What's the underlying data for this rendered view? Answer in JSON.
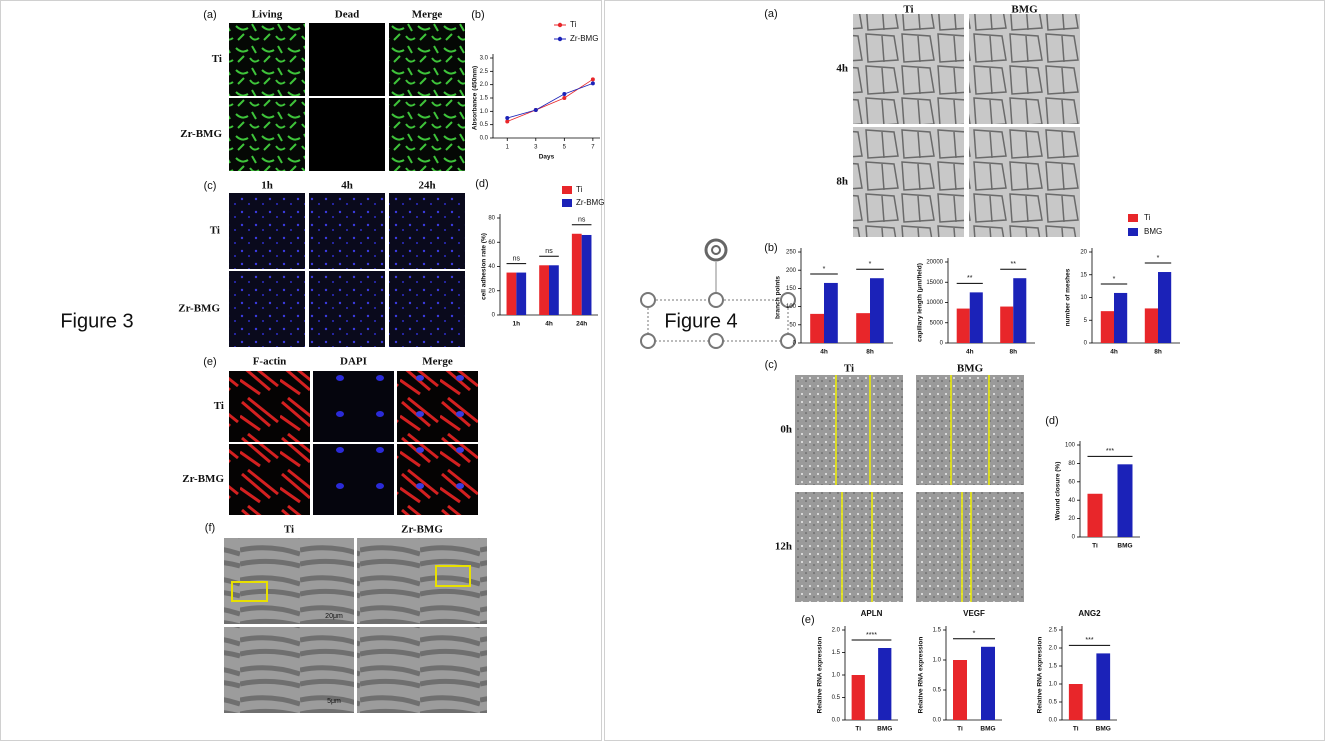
{
  "slide_left": {
    "caption": "Figure 3"
  },
  "slide_right": {
    "caption": "Figure 4"
  },
  "figure3": {
    "panel_a": {
      "label": "(a)",
      "columns": [
        "Living",
        "Dead",
        "Merge"
      ],
      "rows": [
        "Ti",
        "Zr-BMG"
      ]
    },
    "panel_c": {
      "label": "(c)",
      "columns": [
        "1h",
        "4h",
        "24h"
      ],
      "rows": [
        "Ti",
        "Zr-BMG"
      ]
    },
    "panel_e": {
      "label": "(e)",
      "columns": [
        "F-actin",
        "DAPI",
        "Merge"
      ],
      "rows": [
        "Ti",
        "Zr-BMG"
      ]
    },
    "panel_f": {
      "label": "(f)",
      "columns": [
        "Ti",
        "Zr-BMG"
      ],
      "scale_bars": [
        "20μm",
        "5μm"
      ]
    }
  },
  "figure4": {
    "panel_a": {
      "label": "(a)",
      "columns": [
        "Ti",
        "BMG"
      ],
      "rows": [
        "4h",
        "8h"
      ]
    },
    "panel_b": {
      "label": "(b)"
    },
    "panel_c": {
      "label": "(c)",
      "columns": [
        "Ti",
        "BMG"
      ],
      "rows": [
        "0h",
        "12h"
      ]
    },
    "panel_e": {
      "label": "(e)"
    }
  },
  "chart_data": [
    {
      "type": "line",
      "label": "(b)",
      "x": [
        1,
        3,
        5,
        7
      ],
      "xlim": [
        0,
        7.5
      ],
      "xticks": [
        1,
        3,
        5,
        7
      ],
      "ylim": [
        0,
        3
      ],
      "yticks": [
        {
          "value": 0,
          "label": "0.0"
        },
        {
          "value": 0.5,
          "label": "0.5"
        },
        {
          "value": 1,
          "label": "1.0"
        },
        {
          "value": 1.5,
          "label": "1.5"
        },
        {
          "value": 2,
          "label": "2.0"
        },
        {
          "value": 2.5,
          "label": "2.5"
        },
        {
          "value": 3,
          "label": "3.0"
        }
      ],
      "x_label": "Days",
      "y_label": "Absorbance (450nm)",
      "series": [
        {
          "name": "Ti",
          "color": "#e8262a",
          "values": [
            0.62,
            1.05,
            1.5,
            2.2
          ]
        },
        {
          "name": "Zr-BMG",
          "color": "#1b22b8",
          "values": [
            0.75,
            1.05,
            1.65,
            2.05
          ]
        }
      ]
    },
    {
      "type": "bar",
      "label": "(d)",
      "categories": [
        "1h",
        "4h",
        "24h"
      ],
      "ylim": [
        0,
        80
      ],
      "yticks": [
        0,
        20,
        40,
        60,
        80
      ],
      "y_label": "cell adhesion rate (%)",
      "series": [
        {
          "name": "Ti",
          "color": "#e8262a",
          "values": [
            35,
            41,
            67
          ]
        },
        {
          "name": "Zr-BMG",
          "color": "#1b22b8",
          "values": [
            35,
            41,
            66
          ]
        }
      ],
      "sig": [
        "ns",
        "ns",
        "ns"
      ]
    },
    {
      "type": "bar",
      "categories": [
        "4h",
        "8h"
      ],
      "ylim": [
        0,
        250
      ],
      "yticks": [
        0,
        50,
        100,
        150,
        200,
        250
      ],
      "y_label": "branch points",
      "series": [
        {
          "name": "Ti",
          "color": "#e8262a",
          "values": [
            80,
            82
          ]
        },
        {
          "name": "BMG",
          "color": "#1b22b8",
          "values": [
            165,
            178
          ]
        }
      ],
      "sig": [
        "*",
        "*"
      ]
    },
    {
      "type": "bar",
      "categories": [
        "4h",
        "8h"
      ],
      "ylim": [
        0,
        20000
      ],
      "yticks": [
        0,
        5000,
        10000,
        15000,
        20000
      ],
      "y_label": "capillary length (μm/field)",
      "series": [
        {
          "name": "Ti",
          "color": "#e8262a",
          "values": [
            8500,
            9000
          ]
        },
        {
          "name": "BMG",
          "color": "#1b22b8",
          "values": [
            12500,
            16000
          ]
        }
      ],
      "sig": [
        "**",
        "**"
      ]
    },
    {
      "type": "bar",
      "categories": [
        "4h",
        "8h"
      ],
      "ylim": [
        0,
        20
      ],
      "yticks": [
        0,
        5,
        10,
        15,
        20
      ],
      "y_label": "number of meshes",
      "series": [
        {
          "name": "Ti",
          "color": "#e8262a",
          "values": [
            7,
            7.6
          ]
        },
        {
          "name": "BMG",
          "color": "#1b22b8",
          "values": [
            11,
            15.6
          ]
        }
      ],
      "sig": [
        "*",
        "*"
      ]
    },
    {
      "type": "bar",
      "label": "(d)",
      "categories": [
        "Ti",
        "BMG"
      ],
      "values": [
        47,
        79
      ],
      "colors": [
        "#e8262a",
        "#1b22b8"
      ],
      "ylim": [
        0,
        100
      ],
      "yticks": [
        0,
        20,
        40,
        60,
        80,
        100
      ],
      "y_label": "Wound closure (%)",
      "sig": "***"
    },
    {
      "type": "bar",
      "title": "APLN",
      "categories": [
        "Ti",
        "BMG"
      ],
      "values": [
        1,
        1.6
      ],
      "colors": [
        "#e8262a",
        "#1b22b8"
      ],
      "ylim": [
        0,
        2
      ],
      "yticks": [
        {
          "value": 0,
          "label": "0.0"
        },
        {
          "value": 0.5,
          "label": "0.5"
        },
        {
          "value": 1,
          "label": "1.0"
        },
        {
          "value": 1.5,
          "label": "1.5"
        },
        {
          "value": 2,
          "label": "2.0"
        }
      ],
      "y_label": "Relative RNA expression",
      "sig": "****"
    },
    {
      "type": "bar",
      "title": "VEGF",
      "categories": [
        "Ti",
        "BMG"
      ],
      "values": [
        1,
        1.22
      ],
      "colors": [
        "#e8262a",
        "#1b22b8"
      ],
      "ylim": [
        0,
        1.5
      ],
      "yticks": [
        {
          "value": 0,
          "label": "0.0"
        },
        {
          "value": 0.5,
          "label": "0.5"
        },
        {
          "value": 1,
          "label": "1.0"
        },
        {
          "value": 1.5,
          "label": "1.5"
        }
      ],
      "y_label": "Relative RNA expression",
      "sig": "*"
    },
    {
      "type": "bar",
      "title": "ANG2",
      "categories": [
        "Ti",
        "BMG"
      ],
      "values": [
        1,
        1.85
      ],
      "colors": [
        "#e8262a",
        "#1b22b8"
      ],
      "ylim": [
        0,
        2.5
      ],
      "yticks": [
        {
          "value": 0,
          "label": "0.0"
        },
        {
          "value": 0.5,
          "label": "0.5"
        },
        {
          "value": 1,
          "label": "1.0"
        },
        {
          "value": 1.5,
          "label": "1.5"
        },
        {
          "value": 2,
          "label": "2.0"
        },
        {
          "value": 2.5,
          "label": "2.5"
        }
      ],
      "y_label": "Relative RNA expression",
      "sig": "***"
    }
  ]
}
